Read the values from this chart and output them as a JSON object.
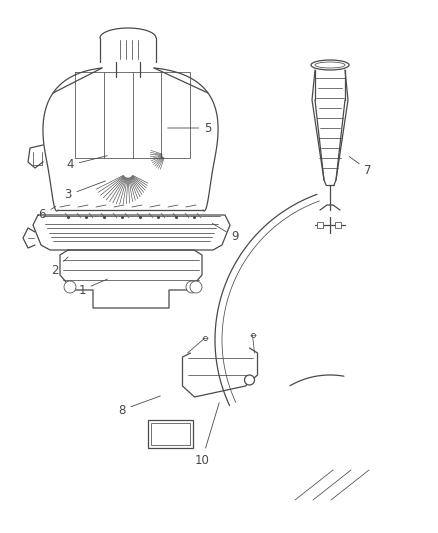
{
  "bg_color": "#ffffff",
  "line_color": "#4a4a4a",
  "lc2": "#333333",
  "label_fontsize": 8.5,
  "label_defs": [
    [
      1,
      0.19,
      0.355,
      0.235,
      0.375
    ],
    [
      2,
      0.135,
      0.388,
      0.19,
      0.415
    ],
    [
      3,
      0.175,
      0.595,
      0.245,
      0.63
    ],
    [
      4,
      0.185,
      0.635,
      0.25,
      0.665
    ],
    [
      5,
      0.485,
      0.845,
      0.365,
      0.845
    ],
    [
      6,
      0.105,
      0.535,
      0.16,
      0.565
    ],
    [
      7,
      0.845,
      0.56,
      0.79,
      0.575
    ],
    [
      8,
      0.31,
      0.21,
      0.345,
      0.235
    ],
    [
      9,
      0.545,
      0.49,
      0.475,
      0.515
    ],
    [
      10,
      0.46,
      0.17,
      0.44,
      0.21
    ]
  ]
}
